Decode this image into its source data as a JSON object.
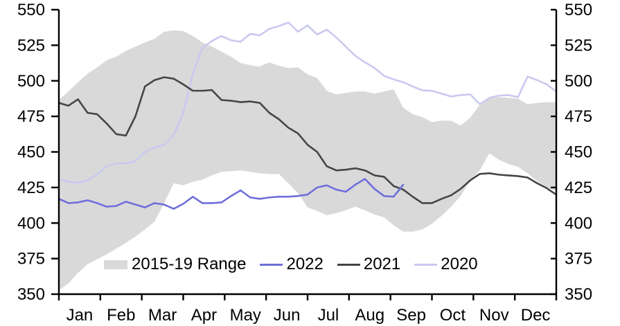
{
  "chart_data": {
    "type": "line",
    "title": "",
    "y_axis": {
      "min": 350,
      "max": 550,
      "step": 25,
      "ticks": [
        350,
        375,
        400,
        425,
        450,
        475,
        500,
        525,
        550
      ],
      "dual_axis": true,
      "grid": false
    },
    "x_axis": {
      "months": [
        "Jan",
        "Feb",
        "Mar",
        "Apr",
        "May",
        "Jun",
        "Jul",
        "Aug",
        "Sep",
        "Oct",
        "Nov",
        "Dec"
      ],
      "resolution": "weekly"
    },
    "band": {
      "label": "2015-19 Range",
      "color": "#d9d9d9",
      "upper": [
        486.5,
        492.5,
        499,
        505,
        509.5,
        514.5,
        517,
        521,
        524,
        527,
        529.5,
        534.5,
        535.5,
        535,
        531.5,
        527,
        524,
        520.5,
        517,
        512.5,
        511,
        510,
        513,
        510.5,
        509,
        509.5,
        504.5,
        502,
        493,
        490.5,
        491.5,
        492.5,
        492.5,
        491,
        492.5,
        494,
        481,
        476.5,
        474.5,
        471,
        472,
        472,
        468.5,
        474,
        483,
        487.5,
        488.5,
        488,
        487.5,
        483.5,
        484.5,
        485,
        485
      ],
      "lower": [
        353,
        357.5,
        365,
        371,
        374.5,
        378,
        382,
        386,
        390.5,
        395.5,
        401,
        414,
        428,
        426.5,
        429,
        430.5,
        433.5,
        436,
        436.5,
        437,
        436,
        435,
        434.5,
        434.5,
        428,
        421,
        411,
        408.5,
        405.5,
        407,
        409,
        411.5,
        409,
        406,
        404,
        398.5,
        394,
        394,
        395.5,
        399.5,
        405,
        411.5,
        419,
        430,
        437,
        449,
        444.5,
        441.5,
        439.5,
        435,
        429.5,
        425,
        422.5
      ]
    },
    "series": [
      {
        "name": "2022",
        "color": "#6f6fdc",
        "values": [
          417,
          414,
          414.5,
          416,
          414,
          411.5,
          412,
          415,
          413,
          411,
          414,
          413,
          410,
          413.5,
          418.5,
          414,
          414,
          414.5,
          419,
          423,
          418,
          417,
          418,
          418.5,
          418.5,
          419,
          420,
          425,
          426.5,
          423.5,
          422,
          427,
          431,
          424,
          419,
          418.5,
          427
        ]
      },
      {
        "name": "2021",
        "color": "#454545",
        "values": [
          484.5,
          482.5,
          487,
          477.5,
          476.5,
          470,
          462.5,
          461.5,
          475,
          496,
          500.5,
          502.5,
          501.5,
          497.5,
          493,
          493,
          493.5,
          486.5,
          486,
          485,
          485.5,
          484.5,
          477.5,
          473,
          467,
          463,
          455,
          450,
          440,
          437,
          437.5,
          438.5,
          437,
          433.5,
          432.5,
          426,
          423.5,
          418.5,
          414,
          414,
          417,
          419.5,
          424,
          430,
          434.5,
          435,
          434,
          433.5,
          433,
          432,
          428,
          424.5,
          420
        ]
      },
      {
        "name": "2020",
        "color": "#c9c9f0",
        "values": [
          431,
          429,
          428.5,
          430,
          434,
          440,
          442,
          442,
          443.5,
          450,
          453,
          455,
          462,
          477,
          505,
          523,
          528,
          531.5,
          528.5,
          527.5,
          533,
          532,
          536.5,
          538.5,
          541,
          534.5,
          539,
          532.5,
          536,
          530.5,
          524,
          517.5,
          513,
          509,
          503.5,
          501,
          499,
          496,
          493.3,
          493,
          491,
          489,
          490,
          490.5,
          483.5,
          488,
          489.5,
          490,
          488.5,
          503,
          500.5,
          497.5,
          492.5
        ]
      }
    ],
    "legend": {
      "position": "bottom-inside",
      "items": [
        {
          "label": "2015-19 Range",
          "type": "band"
        },
        {
          "label": "2022",
          "type": "line"
        },
        {
          "label": "2021",
          "type": "line"
        },
        {
          "label": "2020",
          "type": "line"
        }
      ]
    }
  }
}
